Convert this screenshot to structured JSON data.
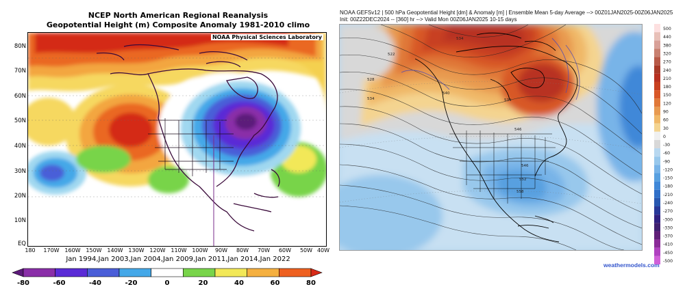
{
  "left_panel": {
    "title_line1": "NCEP North American Regional Reanalysis",
    "title_line2": "Geopotential Height (m) Composite Anomaly 1981-2010 climo",
    "credit": "NOAA Physical Sciences Laboratory",
    "lat_labels": [
      "80N",
      "70N",
      "60N",
      "50N",
      "40N",
      "30N",
      "20N",
      "10N",
      "EQ"
    ],
    "lon_labels": [
      "180",
      "170W",
      "160W",
      "150W",
      "140W",
      "130W",
      "120W",
      "110W",
      "100W",
      "90W",
      "80W",
      "70W",
      "60W",
      "50W",
      "40W"
    ],
    "composite_dates": "Jan 1994,Jan 2003,Jan 2004,Jan 2009,Jan 2011,Jan 2014,Jan 2022",
    "colorbar": {
      "ticks": [
        "-80",
        "-60",
        "-40",
        "-20",
        "0",
        "20",
        "40",
        "60",
        "80"
      ],
      "colors": [
        "#5c1a7a",
        "#8a2ea8",
        "#5a2bd6",
        "#4a5ed8",
        "#44a8e8",
        "#ffffff",
        "#78d44a",
        "#f2e858",
        "#f5b040",
        "#ee6020",
        "#d82a18"
      ]
    }
  },
  "right_panel": {
    "header_line1": "NOAA GEFSv12 | 500 hPa Geopotential Height [dm] & Anomaly [m] | Ensemble Mean 5-day Average --> 00Z01JAN2025-00Z06JAN2025",
    "header_line2": "Init: 00Z22DEC2024 -- [360] hr --> Valid Mon 00Z06JAN2025        10-15 days",
    "site": "weathermodels.com",
    "contour_labels": [
      "534",
      "540",
      "534",
      "528",
      "522",
      "534",
      "546",
      "546",
      "552",
      "558"
    ],
    "scale": {
      "values": [
        "500",
        "440",
        "380",
        "320",
        "270",
        "240",
        "210",
        "180",
        "150",
        "120",
        "90",
        "60",
        "30",
        "0",
        "-30",
        "-60",
        "-90",
        "-120",
        "-150",
        "-180",
        "-210",
        "-240",
        "-270",
        "-300",
        "-330",
        "-370",
        "-410",
        "-450",
        "-500"
      ],
      "colors": [
        "#fde0e0",
        "#e8c0b8",
        "#d8a098",
        "#c88070",
        "#b85a48",
        "#a83a28",
        "#b83020",
        "#c84020",
        "#d85828",
        "#e07838",
        "#e89a50",
        "#f0b868",
        "#f4d490",
        "#f0f0f0",
        "#d8d8d8",
        "#b8d8f0",
        "#98c8ec",
        "#78b4e8",
        "#58a0e0",
        "#4088d8",
        "#3070c8",
        "#2858b0",
        "#283898",
        "#302080",
        "#402070",
        "#602078",
        "#8a2a98",
        "#b040c0",
        "#d060d8"
      ]
    }
  }
}
